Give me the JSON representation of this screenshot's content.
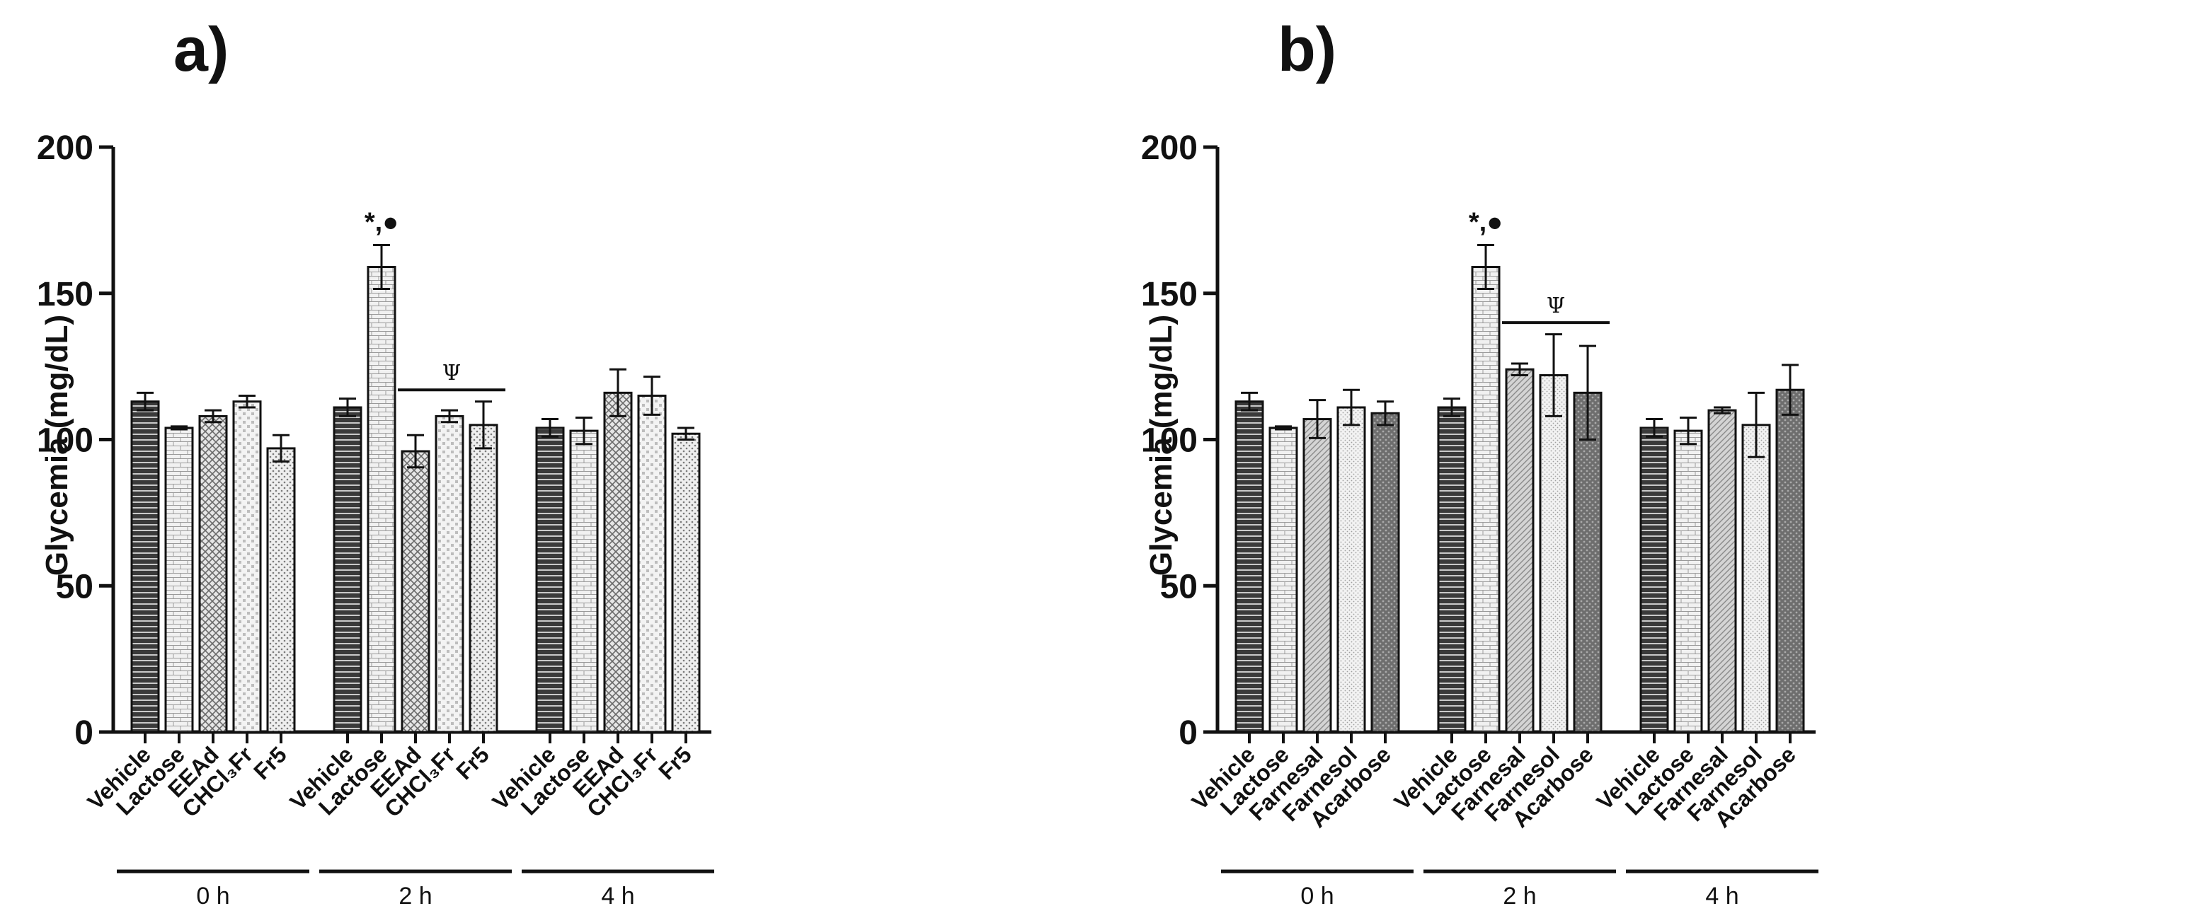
{
  "chart_data": [
    {
      "panel_label": "a)",
      "type": "bar",
      "ylabel": "Glycemia (mg/dL)",
      "ylim": [
        0,
        200
      ],
      "yticks": [
        "0",
        "50",
        "100",
        "150",
        "200"
      ],
      "groups": [
        {
          "label": "0 h",
          "bars": [
            {
              "category": "Vehicle",
              "value": 113,
              "error": 3,
              "pattern": "hstripe"
            },
            {
              "category": "Lactose",
              "value": 104,
              "error": 0.5,
              "pattern": "brick"
            },
            {
              "category": "EEAd",
              "value": 108,
              "error": 2,
              "pattern": "cross"
            },
            {
              "category": "CHCl₃Fr",
              "value": 113,
              "error": 2,
              "pattern": "grid"
            },
            {
              "category": "Fr5",
              "value": 97,
              "error": 4.5,
              "pattern": "dots"
            }
          ]
        },
        {
          "label": "2 h",
          "bars": [
            {
              "category": "Vehicle",
              "value": 111,
              "error": 3,
              "pattern": "hstripe"
            },
            {
              "category": "Lactose",
              "value": 159,
              "error": 7.5,
              "pattern": "brick",
              "annotation": "*,●"
            },
            {
              "category": "EEAd",
              "value": 96,
              "error": 5.5,
              "pattern": "cross"
            },
            {
              "category": "CHCl₃Fr",
              "value": 108,
              "error": 2,
              "pattern": "grid"
            },
            {
              "category": "Fr5",
              "value": 105,
              "error": 8,
              "pattern": "dots"
            }
          ],
          "bracket": {
            "label": "Ψ",
            "value": 117,
            "from": 2,
            "to": 4
          }
        },
        {
          "label": "4 h",
          "bars": [
            {
              "category": "Vehicle",
              "value": 104,
              "error": 3,
              "pattern": "hstripe"
            },
            {
              "category": "Lactose",
              "value": 103,
              "error": 4.5,
              "pattern": "brick"
            },
            {
              "category": "EEAd",
              "value": 116,
              "error": 8,
              "pattern": "cross"
            },
            {
              "category": "CHCl₃Fr",
              "value": 115,
              "error": 6.5,
              "pattern": "grid"
            },
            {
              "category": "Fr5",
              "value": 102,
              "error": 2,
              "pattern": "dots"
            }
          ]
        }
      ]
    },
    {
      "panel_label": "b)",
      "type": "bar",
      "ylabel": "Glycemia (mg/dL)",
      "ylim": [
        0,
        200
      ],
      "yticks": [
        "0",
        "50",
        "100",
        "150",
        "200"
      ],
      "groups": [
        {
          "label": "0 h",
          "bars": [
            {
              "category": "Vehicle",
              "value": 113,
              "error": 3,
              "pattern": "hstripe"
            },
            {
              "category": "Lactose",
              "value": 104,
              "error": 0.5,
              "pattern": "brick"
            },
            {
              "category": "Farnesal",
              "value": 107,
              "error": 6.5,
              "pattern": "diag"
            },
            {
              "category": "Farnesol",
              "value": 111,
              "error": 6,
              "pattern": "fine"
            },
            {
              "category": "Acarbose",
              "value": 109,
              "error": 4,
              "pattern": "darkdot"
            }
          ]
        },
        {
          "label": "2 h",
          "bars": [
            {
              "category": "Vehicle",
              "value": 111,
              "error": 3,
              "pattern": "hstripe"
            },
            {
              "category": "Lactose",
              "value": 159,
              "error": 7.5,
              "pattern": "brick",
              "annotation": "*,●"
            },
            {
              "category": "Farnesal",
              "value": 124,
              "error": 2,
              "pattern": "diag"
            },
            {
              "category": "Farnesol",
              "value": 122,
              "error": 14,
              "pattern": "fine"
            },
            {
              "category": "Acarbose",
              "value": 116,
              "error": 16,
              "pattern": "darkdot"
            }
          ],
          "bracket": {
            "label": "Ψ",
            "value": 140,
            "from": 2,
            "to": 4
          }
        },
        {
          "label": "4 h",
          "bars": [
            {
              "category": "Vehicle",
              "value": 104,
              "error": 3,
              "pattern": "hstripe"
            },
            {
              "category": "Lactose",
              "value": 103,
              "error": 4.5,
              "pattern": "brick"
            },
            {
              "category": "Farnesal",
              "value": 110,
              "error": 1,
              "pattern": "diag"
            },
            {
              "category": "Farnesol",
              "value": 105,
              "error": 11,
              "pattern": "fine"
            },
            {
              "category": "Acarbose",
              "value": 117,
              "error": 8.5,
              "pattern": "darkdot"
            }
          ]
        }
      ]
    }
  ]
}
